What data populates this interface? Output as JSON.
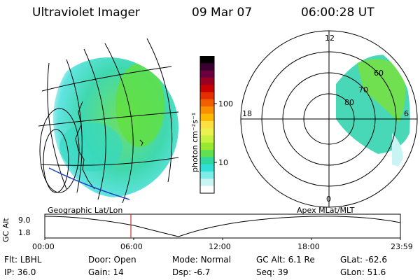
{
  "header": {
    "instrument": "Ultraviolet Imager",
    "date": "09 Mar 07",
    "time": "06:00:28 UT"
  },
  "colorbar": {
    "unit_label": "photon cm⁻²s⁻¹",
    "ticks": [
      {
        "label": "100",
        "value": 100
      },
      {
        "label": "10",
        "value": 10
      }
    ],
    "colors": [
      "#000000",
      "#3a0030",
      "#6a0040",
      "#9a0020",
      "#c80000",
      "#e43000",
      "#f06000",
      "#f89000",
      "#ffb800",
      "#ffe040",
      "#ecf050",
      "#c8f040",
      "#98e830",
      "#60e050",
      "#30d8a0",
      "#30e0d8",
      "#80ece8",
      "#c8f4f4",
      "#ffffff"
    ]
  },
  "polar": {
    "labels": {
      "top": "12",
      "left": "18",
      "right": "6",
      "bottom": "0"
    },
    "lat_labels": [
      "60",
      "70",
      "80"
    ]
  },
  "timeline": {
    "left_caption": "Geographic Lat/Lon",
    "right_caption": "Apex MLat/MLT",
    "axis_label": "GC Alt",
    "y_max": "9.0",
    "y_min": "1.8",
    "time_ticks": [
      "00:00",
      "06:00",
      "12:00",
      "18:00",
      "23:59"
    ],
    "marker_color": "#c03030"
  },
  "status": {
    "flt_label": "Flt:",
    "flt_value": "LBHL",
    "ip_label": "IP:",
    "ip_value": "36.0",
    "door_label": "Door:",
    "door_value": "Open",
    "gain_label": "Gain:",
    "gain_value": "14",
    "mode_label": "Mode:",
    "mode_value": "Normal",
    "dsp_label": "Dsp:",
    "dsp_value": "-6.7",
    "gcalt_label": "GC Alt:",
    "gcalt_value": "6.1 Re",
    "seq_label": "Seq:",
    "seq_value": "39",
    "glat_label": "GLat:",
    "glat_value": "-62.6",
    "glon_label": "GLon:",
    "glon_value": "51.6"
  }
}
